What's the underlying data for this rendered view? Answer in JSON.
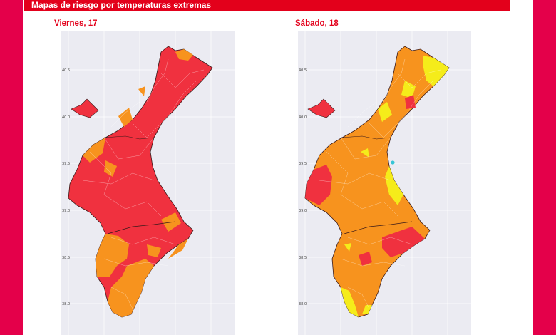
{
  "header": {
    "title": "Mapas de riesgo por temperaturas extremas"
  },
  "colors": {
    "frame": "#e4004a",
    "banner": "#e3001b",
    "panel_bg": "#ebebf2",
    "risk_red": "#f0313f",
    "risk_orange": "#f7931e",
    "risk_yellow": "#f5ec1a",
    "risk_cyan": "#36c5d6"
  },
  "panels": [
    {
      "title": "Viernes, 17",
      "dominant": "risk_red"
    },
    {
      "title": "Sábado, 18",
      "dominant": "risk_orange"
    }
  ],
  "axis": {
    "y_ticks": [
      "40.5",
      "40.0",
      "39.5",
      "39.0",
      "38.5",
      "38.0"
    ]
  }
}
